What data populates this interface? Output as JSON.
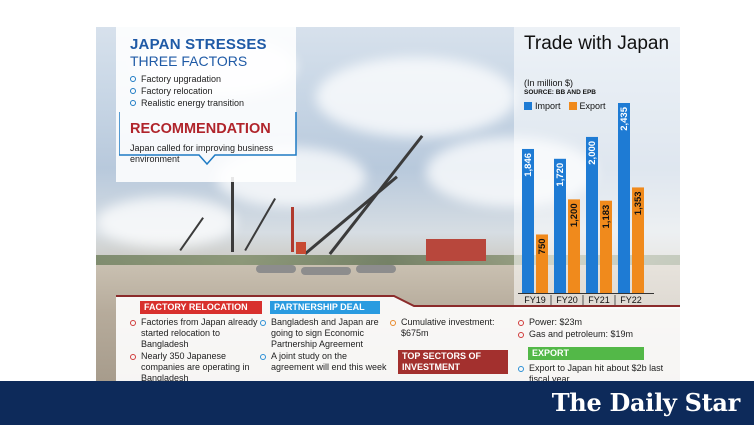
{
  "infobox": {
    "title_line1": "JAPAN STRESSES",
    "title_line2": "THREE FACTORS",
    "factors": [
      "Factory upgradation",
      "Factory relocation",
      "Realistic energy transition"
    ],
    "recommendation_title": "RECOMMENDATION",
    "recommendation_text": "Japan called for improving business environment"
  },
  "chart": {
    "title": "Trade with Japan",
    "unit": "(In million $)",
    "source": "SOURCE: BB AND EPB",
    "colors": {
      "import": "#1e7bd4",
      "export": "#f08a1c"
    }
  },
  "chart_data": {
    "type": "bar",
    "title": "Trade with Japan",
    "ylabel": "In million $",
    "categories": [
      "FY19",
      "FY20",
      "FY21",
      "FY22"
    ],
    "series": [
      {
        "name": "Import",
        "values": [
          1846,
          1720,
          2000,
          2435
        ],
        "labels": [
          "1,846",
          "1,720",
          "2,000",
          "2,435"
        ]
      },
      {
        "name": "Export",
        "values": [
          750,
          1200,
          1183,
          1353
        ],
        "labels": [
          "750",
          "1,200",
          "1,183",
          "1,353"
        ]
      }
    ],
    "ylim": [
      0,
      2435
    ],
    "legend": "top-left",
    "grid": false
  },
  "sections": {
    "factory": {
      "heading": "FACTORY RELOCATION",
      "items": [
        "Factories from Japan already started relocation to Bangladesh",
        "Nearly 350 Japanese companies are operating in Bangladesh"
      ],
      "color": "#d8302d"
    },
    "partnership": {
      "heading": "PARTNERSHIP DEAL",
      "items": [
        "Bangladesh and Japan are going to sign Economic Partnership Agreement",
        "A joint study on the agreement will end this week"
      ],
      "color": "#2a9be0"
    },
    "investment": {
      "items": [
        "Cumulative investment: $675m"
      ],
      "sectors_heading": "TOP SECTORS OF INVESTMENT",
      "color": "#a3302e"
    },
    "energy": {
      "items": [
        "Power: $23m",
        "Gas and petroleum: $19m"
      ]
    },
    "export": {
      "heading": "EXPORT",
      "items": [
        "Export to Japan hit about $2b last fiscal year"
      ],
      "color": "#53b848"
    }
  },
  "footer": {
    "brand": "The Daily Star"
  }
}
